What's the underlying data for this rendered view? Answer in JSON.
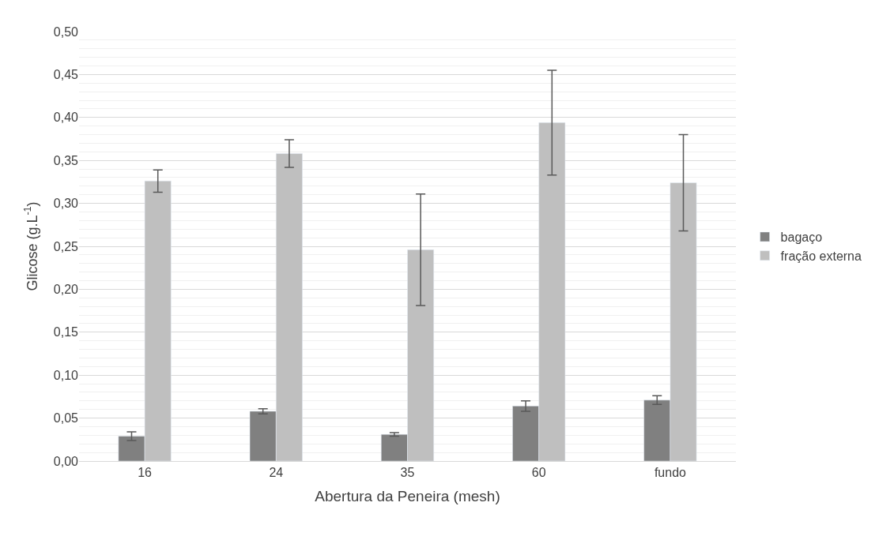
{
  "chart_data": {
    "type": "bar",
    "xlabel": "Abertura da Peneira (mesh)",
    "ylabel": "Glicose (g.L$^{-1}$)",
    "categories": [
      "16",
      "24",
      "35",
      "60",
      "fundo"
    ],
    "series": [
      {
        "name": "bagaço",
        "color": "#808080",
        "values": [
          0.029,
          0.058,
          0.031,
          0.064,
          0.071
        ],
        "errors": [
          0.005,
          0.003,
          0.002,
          0.006,
          0.005
        ]
      },
      {
        "name": "fração externa",
        "color": "#bfbfbf",
        "values": [
          0.326,
          0.358,
          0.246,
          0.394,
          0.324
        ],
        "errors": [
          0.013,
          0.016,
          0.065,
          0.061,
          0.056
        ]
      }
    ],
    "ylim": [
      0,
      0.5
    ],
    "yticks": [
      {
        "value": 0,
        "label": "0,00"
      },
      {
        "value": 0.05,
        "label": "0,05"
      },
      {
        "value": 0.1,
        "label": "0,10"
      },
      {
        "value": 0.15,
        "label": "0,15"
      },
      {
        "value": 0.2,
        "label": "0,20"
      },
      {
        "value": 0.25,
        "label": "0,25"
      },
      {
        "value": 0.3,
        "label": "0,30"
      },
      {
        "value": 0.35,
        "label": "0,35"
      },
      {
        "value": 0.4,
        "label": "0,40"
      },
      {
        "value": 0.45,
        "label": "0,45"
      },
      {
        "value": 0.5,
        "label": "0,50"
      }
    ],
    "grid": "y",
    "legend": "right"
  }
}
